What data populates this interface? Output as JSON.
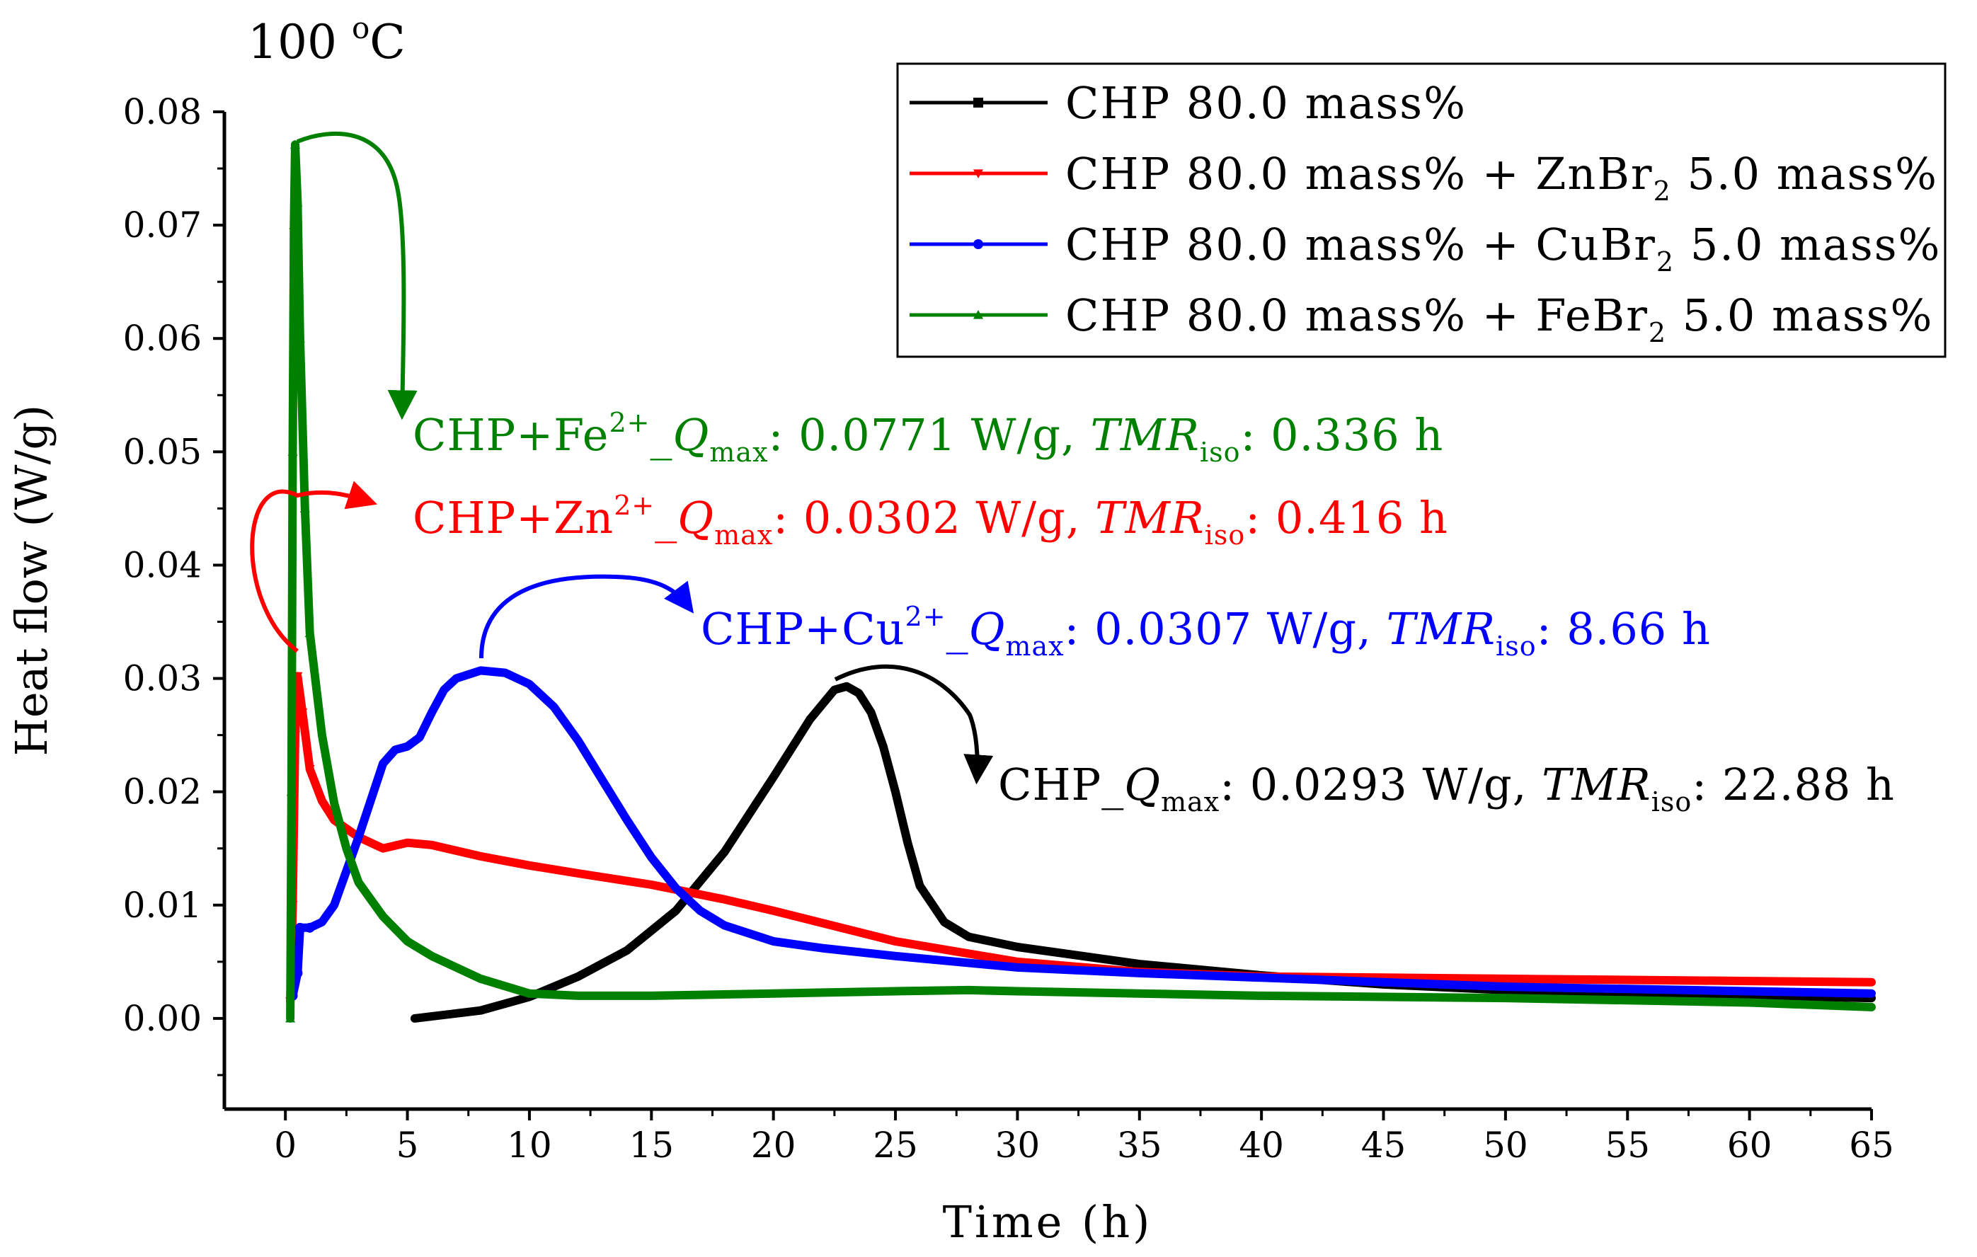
{
  "chart_data": {
    "type": "line",
    "title": "100 °C",
    "title_base": "100 ",
    "title_sup": "o",
    "title_tail": "C",
    "xlabel": "Time (h)",
    "ylabel": "Heat flow (W/g)",
    "xlim": [
      -2.5,
      65
    ],
    "ylim": [
      -0.008,
      0.08
    ],
    "xticks": [
      "0",
      "5",
      "10",
      "15",
      "20",
      "25",
      "30",
      "35",
      "40",
      "45",
      "50",
      "55",
      "60",
      "65"
    ],
    "yticks": [
      "0.00",
      "0.01",
      "0.02",
      "0.03",
      "0.04",
      "0.05",
      "0.06",
      "0.07",
      "0.08"
    ],
    "legend_position": "top-right",
    "series": [
      {
        "name": "CHP 80.0 mass%",
        "legend": {
          "prefix": "CHP 80.0 mass%",
          "metal": "",
          "sub": "",
          "suffix": ""
        },
        "color": "#000000",
        "marker": "square",
        "x": [
          5.3,
          8,
          10,
          12,
          14,
          16,
          18,
          20,
          21.5,
          22.5,
          23.0,
          23.5,
          24.0,
          24.5,
          25.0,
          25.5,
          26.0,
          27.0,
          28.0,
          30,
          35,
          40,
          45,
          50,
          55,
          60,
          65
        ],
        "y": [
          0.0,
          0.0007,
          0.0019,
          0.0037,
          0.006,
          0.0095,
          0.0147,
          0.0213,
          0.0264,
          0.029,
          0.0293,
          0.0287,
          0.027,
          0.024,
          0.02,
          0.0155,
          0.0117,
          0.0085,
          0.0072,
          0.0063,
          0.0048,
          0.0038,
          0.003,
          0.0025,
          0.0022,
          0.002,
          0.0018
        ]
      },
      {
        "name": "CHP 80.0 mass% + ZnBr2 5.0 mass%",
        "legend": {
          "prefix": "CHP 80.0 mass% + ZnBr",
          "metal": "",
          "sub": "2",
          "suffix": " 5.0 mass%"
        },
        "color": "#ff0000",
        "marker": "triangle-down",
        "x": [
          0.2,
          0.3,
          0.4,
          0.5,
          0.7,
          1.0,
          1.5,
          2.0,
          3.0,
          4.0,
          5.0,
          6.0,
          8,
          10,
          12,
          15,
          18,
          20,
          25,
          30,
          35,
          40,
          45,
          50,
          55,
          60,
          65
        ],
        "y": [
          0.0015,
          0.01,
          0.025,
          0.0302,
          0.027,
          0.022,
          0.0192,
          0.0175,
          0.016,
          0.015,
          0.0155,
          0.0153,
          0.0143,
          0.0135,
          0.0128,
          0.0118,
          0.0105,
          0.0095,
          0.0068,
          0.005,
          0.0041,
          0.0037,
          0.0036,
          0.0035,
          0.0034,
          0.0033,
          0.0032
        ]
      },
      {
        "name": "CHP 80.0 mass% + CuBr2 5.0 mass%",
        "legend": {
          "prefix": "CHP 80.0 mass% + CuBr",
          "metal": "",
          "sub": "2",
          "suffix": " 5.0 mass%"
        },
        "color": "#0000ff",
        "marker": "circle",
        "x": [
          0.3,
          0.5,
          0.6,
          1.0,
          1.5,
          2.0,
          3.0,
          4.0,
          4.5,
          5.0,
          5.5,
          6.0,
          6.5,
          7.0,
          8.0,
          9.0,
          10.0,
          11.0,
          12,
          13,
          14,
          15,
          16,
          17,
          18,
          20,
          22,
          25,
          30,
          35,
          40,
          45,
          50,
          55,
          60,
          65
        ],
        "y": [
          0.002,
          0.004,
          0.008,
          0.008,
          0.0085,
          0.01,
          0.016,
          0.0225,
          0.0237,
          0.024,
          0.0248,
          0.027,
          0.029,
          0.03,
          0.0307,
          0.0305,
          0.0295,
          0.0275,
          0.0245,
          0.021,
          0.0175,
          0.0142,
          0.0115,
          0.0095,
          0.0082,
          0.0068,
          0.0062,
          0.0055,
          0.0045,
          0.004,
          0.0036,
          0.0032,
          0.0028,
          0.0026,
          0.0024,
          0.0022
        ]
      },
      {
        "name": "CHP 80.0 mass% + FeBr2 5.0 mass%",
        "legend": {
          "prefix": "CHP 80.0 mass% + FeBr",
          "metal": "",
          "sub": "2",
          "suffix": " 5.0 mass%"
        },
        "color": "#008000",
        "marker": "triangle-up",
        "x": [
          0.2,
          0.25,
          0.3,
          0.35,
          0.4,
          0.5,
          0.6,
          0.8,
          1.0,
          1.5,
          2.0,
          2.5,
          3.0,
          4.0,
          5.0,
          6.0,
          8.0,
          10.0,
          12,
          15,
          20,
          25,
          28,
          30,
          35,
          40,
          50,
          60,
          65
        ],
        "y": [
          0.0,
          0.02,
          0.05,
          0.07,
          0.0771,
          0.072,
          0.06,
          0.045,
          0.034,
          0.025,
          0.019,
          0.015,
          0.012,
          0.009,
          0.0068,
          0.0055,
          0.0035,
          0.0022,
          0.002,
          0.002,
          0.0022,
          0.0024,
          0.0025,
          0.0024,
          0.0022,
          0.002,
          0.0018,
          0.0014,
          0.001
        ]
      }
    ],
    "annotations": [
      {
        "color": "#008000",
        "pre": "CHP+Fe",
        "ion": "2+",
        "mid": "_",
        "q": "Q",
        "qsub": "max",
        "val": ": 0.0771 W/g, ",
        "tmr": "TMR",
        "tmrsub": "iso",
        "end": ": 0.336 h"
      },
      {
        "color": "#ff0000",
        "pre": "CHP+Zn",
        "ion": "2+",
        "mid": "_",
        "q": "Q",
        "qsub": "max",
        "val": ": 0.0302 W/g, ",
        "tmr": "TMR",
        "tmrsub": "iso",
        "end": ": 0.416 h"
      },
      {
        "color": "#0000ff",
        "pre": "CHP+Cu",
        "ion": "2+",
        "mid": "_",
        "q": "Q",
        "qsub": "max",
        "val": ": 0.0307 W/g, ",
        "tmr": "TMR",
        "tmrsub": "iso",
        "end": ": 8.66 h"
      },
      {
        "color": "#000000",
        "pre": "CHP",
        "ion": "",
        "mid": "_",
        "q": "Q",
        "qsub": "max",
        "val": ": 0.0293 W/g, ",
        "tmr": "TMR",
        "tmrsub": "iso",
        "end": ": 22.88 h"
      }
    ]
  }
}
